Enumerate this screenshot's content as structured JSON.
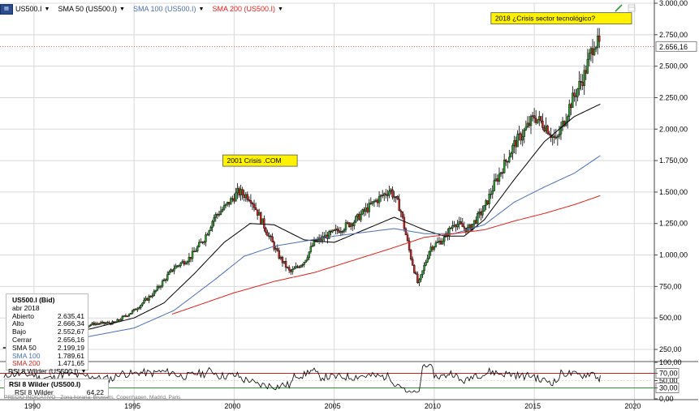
{
  "toolbar": {
    "items": [
      {
        "label": "US500.I",
        "color": "#000000"
      },
      {
        "label": "SMA 50 (US500.I)",
        "color": "#000000"
      },
      {
        "label": "SMA 100 (US500.I)",
        "color": "#4a6fb5"
      },
      {
        "label": "SMA 200 (US500.I)",
        "color": "#e0201a"
      }
    ]
  },
  "info": {
    "title": "US500.I (Bid)",
    "date": "abr 2018",
    "rows": [
      {
        "label": "Abierto",
        "value": "2.635,41",
        "color": "#000000"
      },
      {
        "label": "Alto",
        "value": "2.666,34",
        "color": "#000000"
      },
      {
        "label": "Bajo",
        "value": "2.552,67",
        "color": "#000000"
      },
      {
        "label": "Cerrar",
        "value": "2.656,16",
        "color": "#000000"
      },
      {
        "label": "SMA 50",
        "value": "2.199,19",
        "color": "#000000"
      },
      {
        "label": "SMA 100",
        "value": "1.789,61",
        "color": "#4a6fb5"
      },
      {
        "label": "SMA 200",
        "value": "1.471,65",
        "color": "#e0201a"
      }
    ]
  },
  "rsi": {
    "header": "RSI 8 Wilder (US500.I)",
    "box_title": "RSI 8 Wilder (US500.I)",
    "box_label": "RSI 8 Wilder",
    "box_value": "64,22"
  },
  "footnote": "PRECIO INDICATIVO · Zona horaria: Brussels, Copenhagen, Madrid, Paris",
  "chart_data": {
    "type": "candlestick",
    "annotations": [
      {
        "text": "2001 Crisis .COM",
        "x": 1999.6,
        "y": 1750
      },
      {
        "text": "2018 ¿Crisis sector tecnológico?",
        "x": 2013.0,
        "y": 2880
      }
    ],
    "last_price": "2.656,16",
    "last_value": 2656.16,
    "x_ticks": [
      1990,
      1995,
      2000,
      2005,
      2010,
      2015,
      2020
    ],
    "xlim": [
      1988.3,
      2021.0
    ],
    "ylim": [
      160,
      3000
    ],
    "y_ticks": [
      250,
      500,
      750,
      1000,
      1250,
      1500,
      1750,
      2000,
      2250,
      2500,
      2750,
      3000
    ],
    "y_tick_labels": [
      "250,00",
      "500,00",
      "750,00",
      "1.000,00",
      "1.250,00",
      "1.500,00",
      "1.750,00",
      "2.000,00",
      "2.250,00",
      "2.500,00",
      "2.750,00",
      "3.000,00"
    ],
    "series": [
      {
        "name": "US500.I",
        "color": "#000000",
        "x": [
          1988.5,
          1990,
          1991,
          1992,
          1993,
          1994,
          1995,
          1996,
          1997,
          1997.8,
          1998.5,
          1999,
          1999.6,
          2000.2,
          2000.8,
          2001.5,
          2002.2,
          2002.8,
          2003.5,
          2004,
          2005,
          2006,
          2007,
          2007.8,
          2008.3,
          2008.8,
          2009.2,
          2009.8,
          2010.5,
          2011,
          2011.7,
          2012.5,
          2013,
          2014,
          2014.5,
          2015,
          2015.6,
          2016.1,
          2016.8,
          2017.5,
          2018,
          2018.3
        ],
        "y": [
          265,
          340,
          350,
          410,
          455,
          460,
          560,
          700,
          900,
          980,
          1130,
          1300,
          1390,
          1500,
          1460,
          1230,
          1000,
          860,
          950,
          1100,
          1180,
          1270,
          1420,
          1520,
          1370,
          1000,
          760,
          1060,
          1130,
          1260,
          1200,
          1370,
          1560,
          1880,
          1980,
          2100,
          2020,
          1900,
          2200,
          2430,
          2700,
          2656
        ]
      },
      {
        "name": "SMA 50",
        "color": "#000000",
        "x": [
          1989,
          1991,
          1993,
          1995,
          1996.5,
          1998,
          1999.5,
          2000.8,
          2002,
          2003.5,
          2005,
          2006.5,
          2008,
          2009.5,
          2010.5,
          2011.5,
          2012.5,
          2014,
          2015.5,
          2017,
          2018.3
        ],
        "y": [
          300,
          350,
          420,
          500,
          620,
          850,
          1100,
          1250,
          1240,
          1120,
          1100,
          1200,
          1300,
          1200,
          1150,
          1150,
          1280,
          1600,
          1900,
          2100,
          2199
        ]
      },
      {
        "name": "SMA 100",
        "color": "#4a6fb5",
        "x": [
          1989,
          1991,
          1993,
          1995,
          1997,
          1999,
          2000.5,
          2002,
          2003.5,
          2005,
          2006.5,
          2008,
          2009.5,
          2011,
          2012.5,
          2014,
          2015.5,
          2017,
          2018.3
        ],
        "y": [
          230,
          300,
          360,
          420,
          560,
          800,
          990,
          1070,
          1110,
          1150,
          1180,
          1210,
          1170,
          1170,
          1240,
          1420,
          1540,
          1650,
          1790
        ]
      },
      {
        "name": "SMA 200",
        "color": "#e0201a",
        "x": [
          1996.9,
          1998,
          2000,
          2002,
          2004,
          2006,
          2008,
          2009.5,
          2011,
          2012.5,
          2014,
          2015.5,
          2017,
          2018.3
        ],
        "y": [
          530,
          590,
          700,
          790,
          860,
          960,
          1060,
          1140,
          1170,
          1200,
          1270,
          1330,
          1400,
          1472
        ]
      }
    ],
    "rsi": {
      "name": "RSI 8 Wilder",
      "ylim": [
        0,
        100
      ],
      "y_ticks": [
        0,
        30,
        50,
        70,
        100
      ],
      "y_tick_labels": [
        "0,00",
        "30,00",
        "50,00",
        "70,00",
        "100,00"
      ],
      "last_value": 64.22
    }
  }
}
